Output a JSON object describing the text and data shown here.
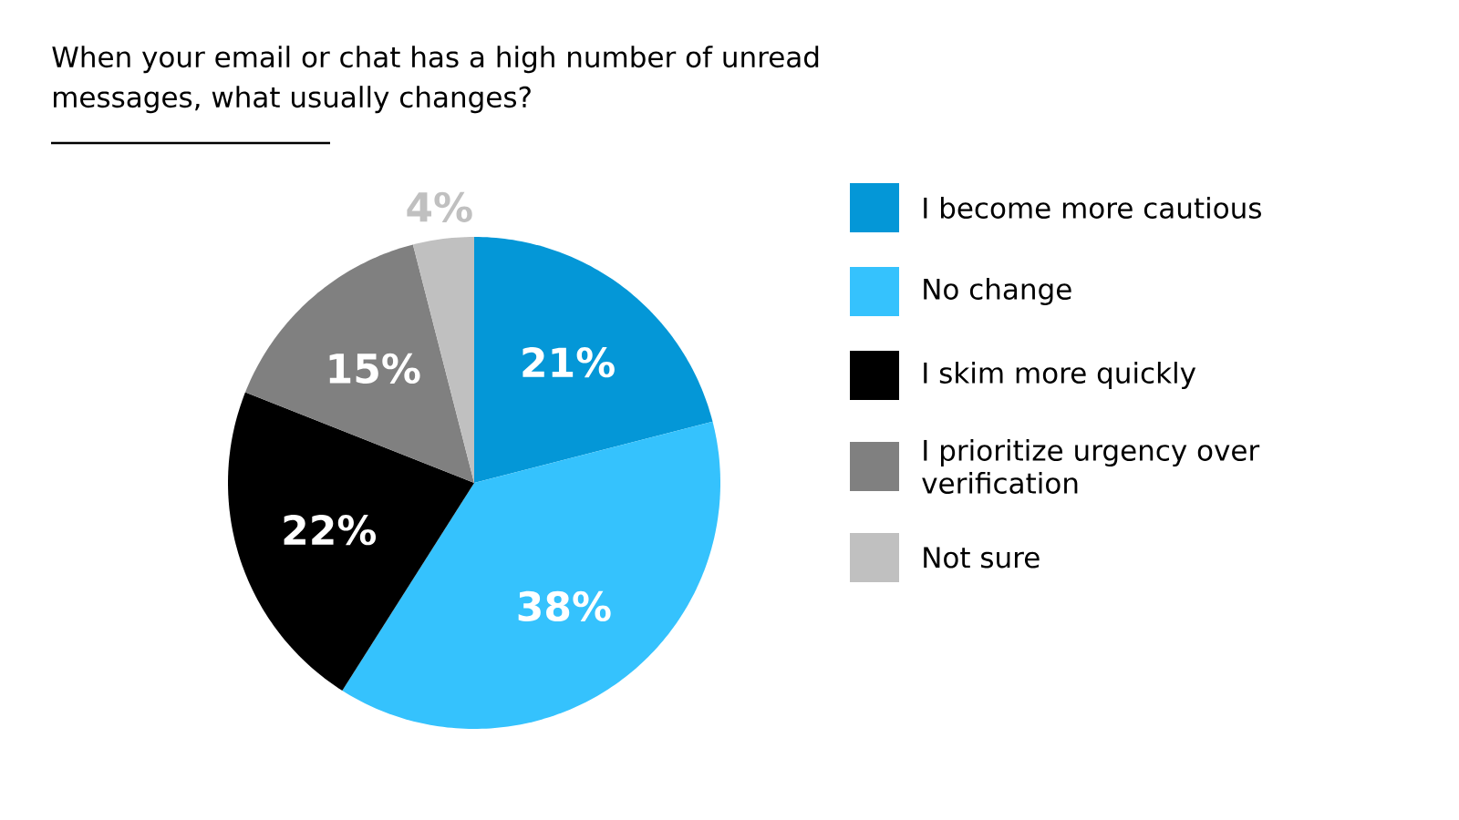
{
  "chart_data": {
    "type": "pie",
    "title": "When your email or chat has a high number of unread messages, what usually changes?",
    "categories": [
      "I become more cautious",
      "No change",
      "I skim more quickly",
      "I prioritize urgency over verification",
      "Not sure"
    ],
    "values": [
      21,
      38,
      22,
      15,
      4
    ],
    "colors": [
      "#0497d7",
      "#35c2fd",
      "#000000",
      "#808080",
      "#c0c0c0"
    ],
    "value_labels": [
      "21%",
      "38%",
      "22%",
      "15%",
      "4%"
    ],
    "legend": "right"
  }
}
